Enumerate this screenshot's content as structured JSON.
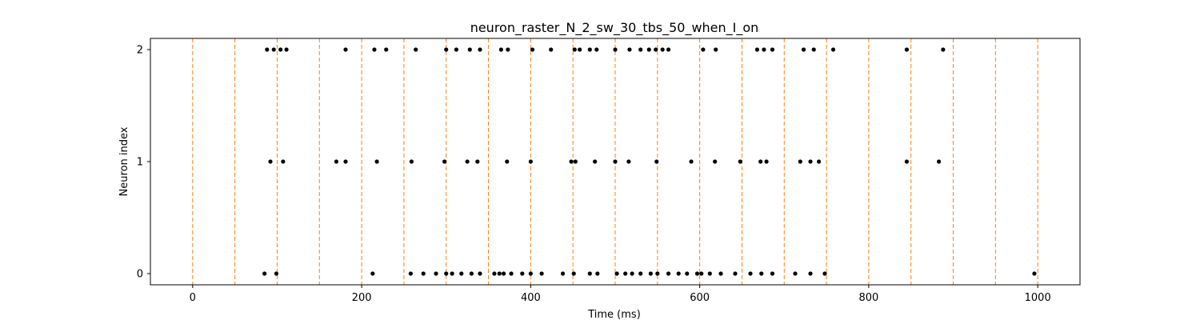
{
  "chart_data": {
    "type": "scatter",
    "title": "neuron_raster_N_2_sw_30_tbs_50_when_I_on",
    "xlabel": "Time (ms)",
    "ylabel": "Neuron index",
    "xlim": [
      -50,
      1050
    ],
    "ylim": [
      -0.1,
      2.1
    ],
    "xticks": [
      0,
      200,
      400,
      600,
      800,
      1000
    ],
    "yticks": [
      0,
      1,
      2
    ],
    "grid": false,
    "marker_color": "#000000",
    "vline_color": "#ff7f0e",
    "vlines_x": [
      0,
      50,
      100,
      150,
      200,
      250,
      300,
      350,
      400,
      450,
      500,
      550,
      600,
      650,
      700,
      750,
      800,
      850,
      900,
      950,
      1000
    ],
    "series": [
      {
        "y": 2,
        "x": [
          88,
          96,
          104,
          111,
          181,
          215,
          229,
          264,
          300,
          312,
          328,
          340,
          365,
          373,
          402,
          424,
          452,
          458,
          470,
          478,
          500,
          517,
          530,
          540,
          548,
          556,
          563,
          604,
          619,
          668,
          676,
          686,
          723,
          735,
          758,
          845,
          888
        ]
      },
      {
        "y": 1,
        "x": [
          92,
          107,
          170,
          181,
          218,
          259,
          298,
          325,
          337,
          372,
          400,
          448,
          453,
          476,
          500,
          516,
          549,
          590,
          618,
          648,
          672,
          679,
          719,
          731,
          741,
          845,
          883
        ]
      },
      {
        "y": 0,
        "x": [
          85,
          99,
          213,
          258,
          273,
          288,
          300,
          307,
          318,
          330,
          340,
          357,
          363,
          368,
          377,
          390,
          400,
          413,
          438,
          451,
          470,
          479,
          502,
          512,
          520,
          530,
          542,
          550,
          563,
          575,
          585,
          597,
          602,
          612,
          625,
          642,
          660,
          673,
          686,
          713,
          731,
          748,
          996
        ]
      }
    ]
  }
}
